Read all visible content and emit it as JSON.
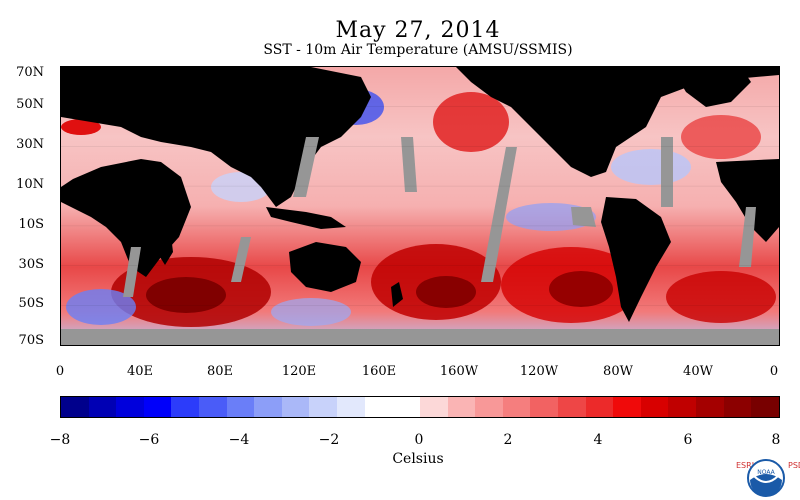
{
  "title": "May 27, 2014",
  "subtitle": "SST - 10m Air Temperature (AMSU/SSMIS)",
  "lat_labels": [
    "70N",
    "50N",
    "30N",
    "10N",
    "10S",
    "30S",
    "50S",
    "70S"
  ],
  "lon_labels": [
    "0",
    "40E",
    "80E",
    "120E",
    "160E",
    "160W",
    "120W",
    "80W",
    "40W",
    "0"
  ],
  "colorbar": {
    "tick_labels": [
      "−8",
      "−6",
      "−4",
      "−2",
      "0",
      "2",
      "4",
      "6",
      "8"
    ],
    "unit": "Celsius",
    "colors": [
      "#00008c",
      "#0000b4",
      "#0000dc",
      "#0000fa",
      "#2c3cfa",
      "#4a5cf8",
      "#6a7ef8",
      "#8c9ef8",
      "#aab8f8",
      "#c8d2fa",
      "#e2e8fc",
      "#ffffff",
      "#ffffff",
      "#fcd8d8",
      "#fab4b4",
      "#f89898",
      "#f57e7e",
      "#f26262",
      "#ee4646",
      "#ec2a2a",
      "#f00a0a",
      "#d80000",
      "#c00000",
      "#a40000",
      "#8c0000",
      "#780000"
    ]
  },
  "colors": {
    "land": "#000000",
    "missing_data": "#969696",
    "logo_blue": "#1a5aa8",
    "logo_red": "#d03030"
  },
  "logo": {
    "left_letters": "ESRL",
    "right_letters": "PSD",
    "emblem_text": "NOAA"
  }
}
